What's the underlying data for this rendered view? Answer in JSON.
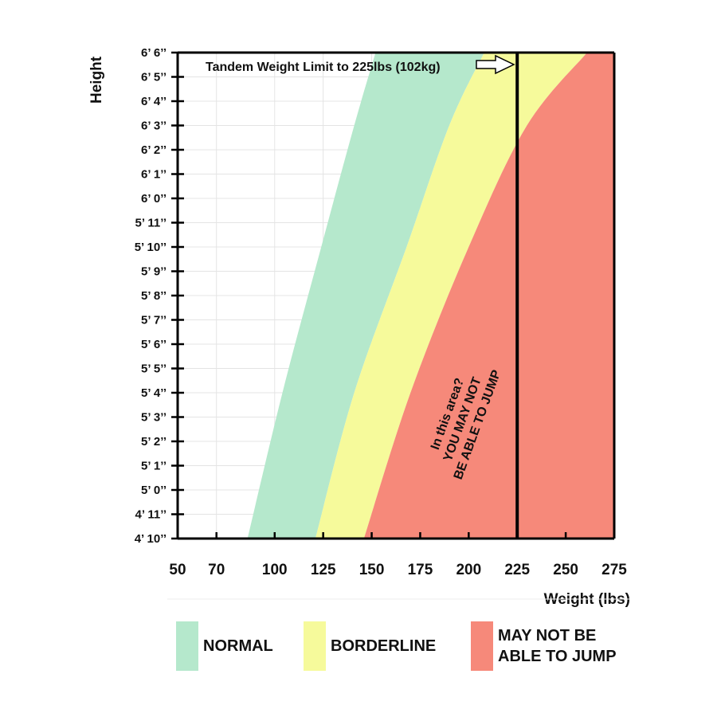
{
  "chart_data": {
    "type": "area",
    "xlabel": "Weight (lbs)",
    "ylabel": "Height",
    "x_ticks": [
      50,
      70,
      100,
      125,
      150,
      175,
      200,
      225,
      250,
      275
    ],
    "x_tick_labels": [
      "50",
      "70",
      "100",
      "125",
      "150",
      "175",
      "200",
      "225",
      "250",
      "275"
    ],
    "y_ticks": [
      58,
      59,
      60,
      61,
      62,
      63,
      64,
      65,
      66,
      67,
      68,
      69,
      70,
      71,
      72,
      73,
      74,
      75,
      76,
      77,
      78
    ],
    "y_tick_labels": [
      "4’ 10’’",
      "4’ 11’’",
      "5’ 0’’",
      "5’ 1’’",
      "5’ 2’’",
      "5’ 3’’",
      "5’ 4’’",
      "5’ 5’’",
      "5’ 6’’",
      "5’ 7’’",
      "5’ 8’’",
      "5’ 9’’",
      "5’ 10’’",
      "5’ 11’’",
      "6’ 0’’",
      "6’ 1’’",
      "6’ 2’’",
      "6’ 3’’",
      "6’ 4’’",
      "6’ 5’’",
      "6’ 6’’"
    ],
    "xlim": [
      50,
      275
    ],
    "ylim": [
      58,
      78
    ],
    "grid": true,
    "bands": [
      {
        "name": "NORMAL",
        "color": "#b5e8cc",
        "lower_boundary": [
          [
            86,
            58
          ],
          [
            104,
            64
          ],
          [
            124,
            70
          ],
          [
            141,
            75
          ],
          [
            152,
            78
          ]
        ],
        "upper_boundary": [
          [
            121,
            58
          ],
          [
            141,
            64
          ],
          [
            168,
            70
          ],
          [
            190,
            75
          ],
          [
            208,
            78
          ]
        ]
      },
      {
        "name": "BORDERLINE",
        "color": "#f6fa9b",
        "lower_boundary": [
          [
            121,
            58
          ],
          [
            141,
            64
          ],
          [
            168,
            70
          ],
          [
            190,
            75
          ],
          [
            208,
            78
          ]
        ],
        "upper_boundary": [
          [
            146,
            58
          ],
          [
            170,
            64
          ],
          [
            200,
            70
          ],
          [
            230,
            75
          ],
          [
            261,
            78
          ]
        ]
      },
      {
        "name": "MAY NOT BE ABLE TO JUMP",
        "color": "#f6897a",
        "lower_boundary": [
          [
            146,
            58
          ],
          [
            170,
            64
          ],
          [
            200,
            70
          ],
          [
            230,
            75
          ],
          [
            261,
            78
          ]
        ],
        "upper_boundary": [
          [
            275,
            58
          ],
          [
            275,
            78
          ]
        ]
      }
    ],
    "limit_line": {
      "x": 225
    },
    "annotations": {
      "limit": "Tandem Weight Limit to 225lbs (102kg)",
      "zone_line1": "In this area?",
      "zone_line2": "YOU MAY NOT",
      "zone_line3": "BE ABLE TO JUMP"
    },
    "legend": [
      {
        "label": "NORMAL",
        "color": "#b5e8cc"
      },
      {
        "label": "BORDERLINE",
        "color": "#f6fa9b"
      },
      {
        "label": "MAY NOT BE\nABLE TO JUMP",
        "color": "#f6897a"
      }
    ]
  }
}
